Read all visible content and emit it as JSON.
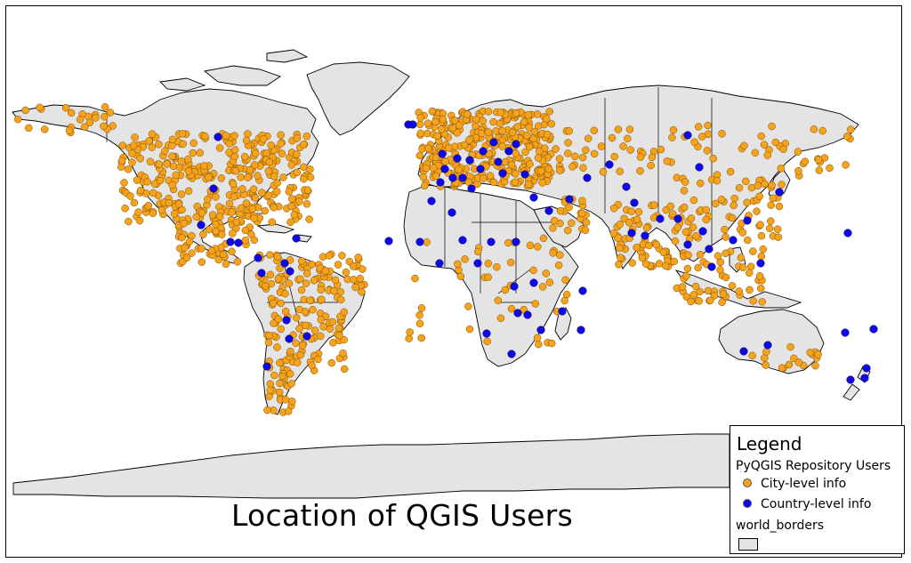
{
  "title": "Location of QGIS Users",
  "colors": {
    "land": "#e4e4e4",
    "city": "#f5a21c",
    "country": "#0e08e8",
    "frame": "#000000"
  },
  "legend": {
    "title": "Legend",
    "layer": "PyQGIS Repository Users",
    "items": [
      {
        "label": "City-level info",
        "color": "#f5a21c"
      },
      {
        "label": "Country-level info",
        "color": "#0e08e8"
      }
    ],
    "borders_layer": "world_borders"
  },
  "map_layers": [
    "PyQGIS Repository Users",
    "world_borders"
  ]
}
